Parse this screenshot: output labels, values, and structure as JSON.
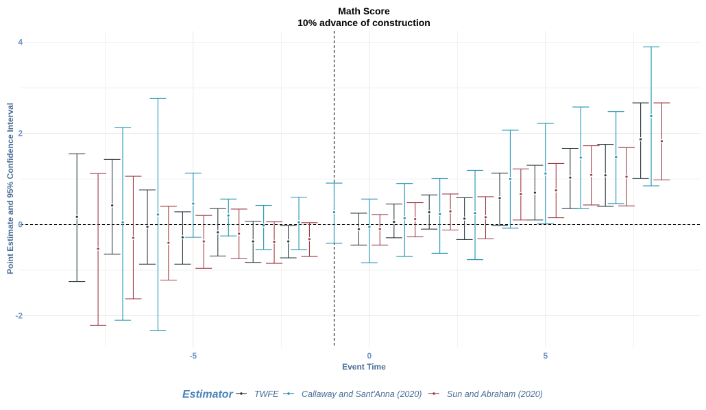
{
  "chart_data": {
    "type": "errorbar",
    "title": "Math Score",
    "subtitle": "10% advance of construction",
    "xlabel": "Event Time",
    "ylabel": "Point Estimate and 95% Confidence Interval",
    "xlim": [
      -9.9,
      9.4
    ],
    "ylim": [
      -2.7,
      4.25
    ],
    "x_ticks": [
      -5,
      0,
      5
    ],
    "y_ticks": [
      -2,
      0,
      2,
      4
    ],
    "grid": true,
    "reference_lines": {
      "vertical_x": -1,
      "horizontal_y": 0,
      "style": "dashed"
    },
    "legend": {
      "title": "Estimator",
      "position": "bottom"
    },
    "colors": {
      "TWFE": "#2b3a3f",
      "Callaway": "#1c93b0",
      "Sun": "#9e3a45",
      "grid": "#ebebeb"
    },
    "series": [
      {
        "name": "TWFE",
        "offset": -0.3,
        "points": [
          {
            "x": -8,
            "y": 0.17,
            "lo": -1.25,
            "hi": 1.55
          },
          {
            "x": -7,
            "y": 0.42,
            "lo": -0.65,
            "hi": 1.43
          },
          {
            "x": -6,
            "y": -0.05,
            "lo": -0.87,
            "hi": 0.76
          },
          {
            "x": -5,
            "y": -0.28,
            "lo": -0.87,
            "hi": 0.28
          },
          {
            "x": -4,
            "y": -0.17,
            "lo": -0.69,
            "hi": 0.35
          },
          {
            "x": -3,
            "y": -0.37,
            "lo": -0.83,
            "hi": 0.07
          },
          {
            "x": -2,
            "y": -0.37,
            "lo": -0.73,
            "hi": -0.02
          },
          {
            "x": 0,
            "y": -0.1,
            "lo": -0.45,
            "hi": 0.25
          },
          {
            "x": 1,
            "y": 0.06,
            "lo": -0.29,
            "hi": 0.45
          },
          {
            "x": 2,
            "y": 0.27,
            "lo": -0.1,
            "hi": 0.65
          },
          {
            "x": 3,
            "y": 0.13,
            "lo": -0.33,
            "hi": 0.59
          },
          {
            "x": 4,
            "y": 0.58,
            "lo": -0.02,
            "hi": 1.13
          },
          {
            "x": 5,
            "y": 0.7,
            "lo": 0.1,
            "hi": 1.3
          },
          {
            "x": 6,
            "y": 1.03,
            "lo": 0.35,
            "hi": 1.67
          },
          {
            "x": 7,
            "y": 1.08,
            "lo": 0.4,
            "hi": 1.76
          },
          {
            "x": 8,
            "y": 1.87,
            "lo": 1.01,
            "hi": 2.67
          }
        ]
      },
      {
        "name": "Callaway and Sant'Anna (2020)",
        "offset": 0,
        "points": [
          {
            "x": -7,
            "y": 0.05,
            "lo": -2.1,
            "hi": 2.13
          },
          {
            "x": -6,
            "y": 0.22,
            "lo": -2.33,
            "hi": 2.77
          },
          {
            "x": -5,
            "y": 0.46,
            "lo": -0.28,
            "hi": 1.13
          },
          {
            "x": -4,
            "y": 0.2,
            "lo": -0.25,
            "hi": 0.56
          },
          {
            "x": -3,
            "y": -0.02,
            "lo": -0.55,
            "hi": 0.42
          },
          {
            "x": -2,
            "y": 0.05,
            "lo": -0.55,
            "hi": 0.6
          },
          {
            "x": -1,
            "y": 0.27,
            "lo": -0.41,
            "hi": 0.91
          },
          {
            "x": 0,
            "y": -0.05,
            "lo": -0.84,
            "hi": 0.56
          },
          {
            "x": 1,
            "y": 0.14,
            "lo": -0.7,
            "hi": 0.9
          },
          {
            "x": 2,
            "y": 0.23,
            "lo": -0.63,
            "hi": 1.01
          },
          {
            "x": 3,
            "y": 0.25,
            "lo": -0.77,
            "hi": 1.19
          },
          {
            "x": 4,
            "y": 1.0,
            "lo": -0.08,
            "hi": 2.07
          },
          {
            "x": 5,
            "y": 1.12,
            "lo": 0.02,
            "hi": 2.22
          },
          {
            "x": 6,
            "y": 1.47,
            "lo": 0.35,
            "hi": 2.58
          },
          {
            "x": 7,
            "y": 1.48,
            "lo": 0.46,
            "hi": 2.48
          },
          {
            "x": 8,
            "y": 2.38,
            "lo": 0.85,
            "hi": 3.9
          }
        ]
      },
      {
        "name": "Sun and Abraham (2020)",
        "offset": 0.3,
        "points": [
          {
            "x": -8,
            "y": -0.53,
            "lo": -2.21,
            "hi": 1.12
          },
          {
            "x": -7,
            "y": -0.29,
            "lo": -1.63,
            "hi": 1.06
          },
          {
            "x": -6,
            "y": -0.4,
            "lo": -1.22,
            "hi": 0.4
          },
          {
            "x": -5,
            "y": -0.37,
            "lo": -0.96,
            "hi": 0.2
          },
          {
            "x": -4,
            "y": -0.2,
            "lo": -0.75,
            "hi": 0.34
          },
          {
            "x": -3,
            "y": -0.38,
            "lo": -0.85,
            "hi": 0.06
          },
          {
            "x": -2,
            "y": -0.32,
            "lo": -0.7,
            "hi": 0.04
          },
          {
            "x": 0,
            "y": -0.1,
            "lo": -0.45,
            "hi": 0.22
          },
          {
            "x": 1,
            "y": 0.12,
            "lo": -0.27,
            "hi": 0.48
          },
          {
            "x": 2,
            "y": 0.29,
            "lo": -0.12,
            "hi": 0.67
          },
          {
            "x": 3,
            "y": 0.16,
            "lo": -0.31,
            "hi": 0.61
          },
          {
            "x": 4,
            "y": 0.67,
            "lo": 0.1,
            "hi": 1.22
          },
          {
            "x": 5,
            "y": 0.75,
            "lo": 0.15,
            "hi": 1.34
          },
          {
            "x": 6,
            "y": 1.09,
            "lo": 0.43,
            "hi": 1.73
          },
          {
            "x": 7,
            "y": 1.05,
            "lo": 0.41,
            "hi": 1.69
          },
          {
            "x": 8,
            "y": 1.83,
            "lo": 0.98,
            "hi": 2.67
          }
        ]
      }
    ]
  }
}
